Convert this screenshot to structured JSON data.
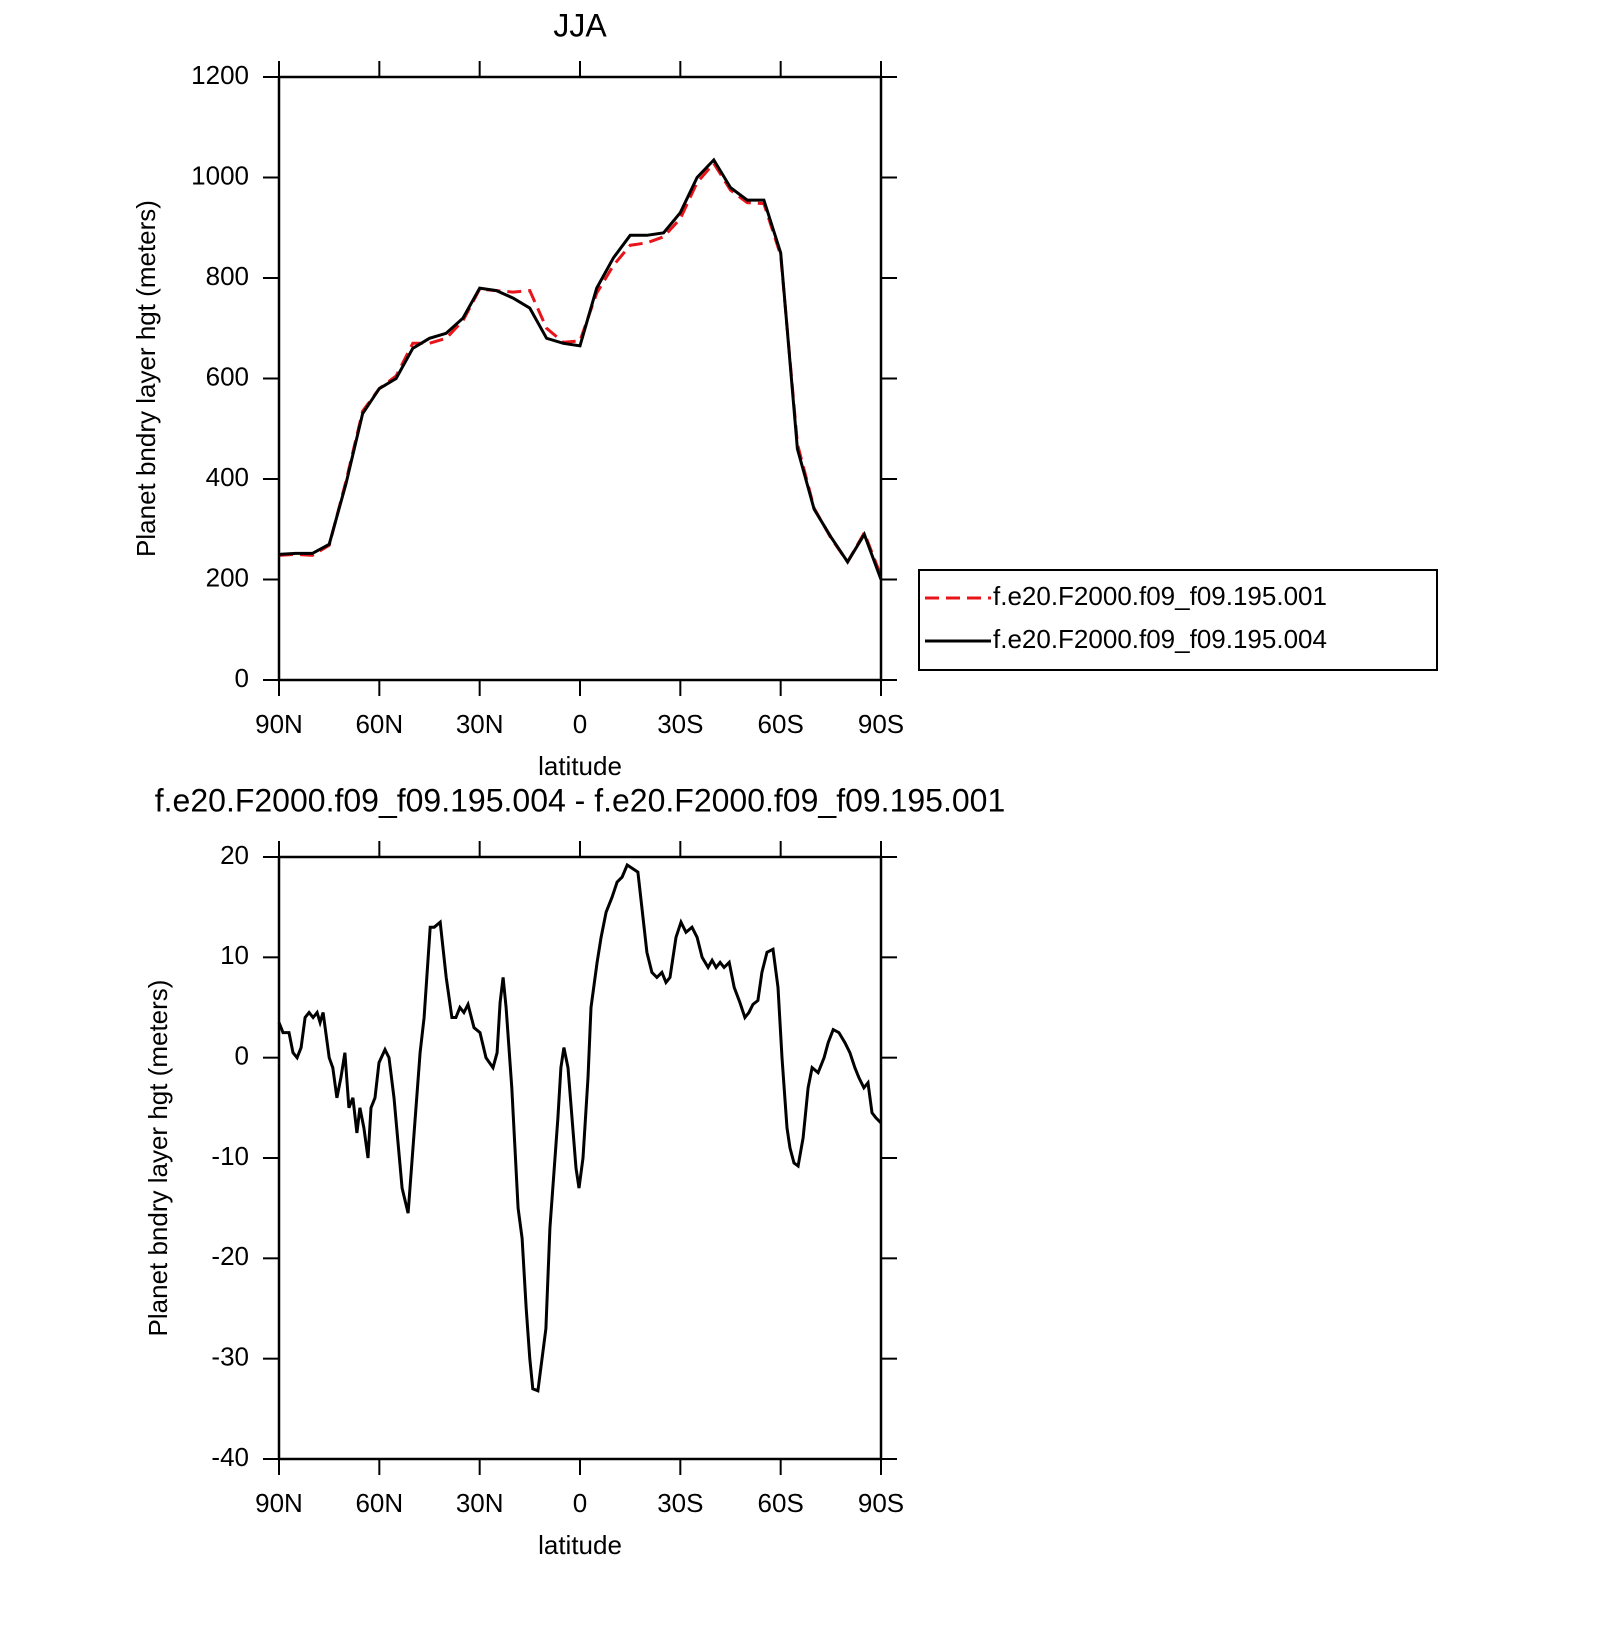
{
  "chart_data": [
    {
      "type": "line",
      "title": "JJA",
      "x_label": "latitude",
      "y_label": "Planet bndry layer hgt (meters)",
      "x": [
        90,
        85,
        80,
        75,
        70,
        65,
        60,
        55,
        50,
        45,
        40,
        35,
        30,
        25,
        20,
        15,
        10,
        5,
        0,
        -5,
        -10,
        -15,
        -20,
        -25,
        -30,
        -35,
        -40,
        -45,
        -50,
        -55,
        -60,
        -65,
        -70,
        -75,
        -80,
        -85,
        -90
      ],
      "series": [
        {
          "name": "f.e20.F2000.f09_f09.195.001",
          "color": "#e8141a",
          "style": "dashed",
          "values": [
            248,
            250,
            248,
            268,
            395,
            535,
            580,
            605,
            670,
            670,
            680,
            715,
            778,
            775,
            772,
            775,
            700,
            672,
            675,
            770,
            825,
            865,
            870,
            882,
            918,
            990,
            1028,
            975,
            950,
            948,
            845,
            470,
            342,
            283,
            235,
            293,
            207
          ]
        },
        {
          "name": "f.e20.F2000.f09_f09.195.004",
          "color": "#000000",
          "style": "solid",
          "values": [
            250,
            252,
            252,
            270,
            390,
            530,
            580,
            600,
            660,
            680,
            690,
            720,
            780,
            775,
            760,
            740,
            680,
            670,
            665,
            780,
            840,
            885,
            885,
            890,
            930,
            1000,
            1035,
            980,
            955,
            955,
            850,
            460,
            340,
            285,
            235,
            290,
            200
          ]
        }
      ],
      "xlim": [
        90,
        -90
      ],
      "xticks": [
        {
          "value": 90,
          "label": "90N"
        },
        {
          "value": 60,
          "label": "60N"
        },
        {
          "value": 30,
          "label": "30N"
        },
        0,
        {
          "value": -30,
          "label": "30S"
        },
        {
          "value": -60,
          "label": "60S"
        },
        {
          "value": -90,
          "label": "90S"
        }
      ],
      "ylim": [
        0,
        1200
      ],
      "yticks": [
        0,
        200,
        400,
        600,
        800,
        1000,
        1200
      ],
      "legend": "right"
    },
    {
      "type": "line",
      "title": "f.e20.F2000.f09_f09.195.004 - f.e20.F2000.f09_f09.195.001",
      "x_label": "latitude",
      "y_label": "Planet bndry layer hgt (meters)",
      "x": [
        90,
        88.8,
        87.0,
        85.8,
        84.6,
        83.4,
        82.2,
        81.0,
        79.8,
        78.6,
        77.7,
        76.8,
        75.0,
        73.9,
        72.7,
        71.5,
        70.3,
        69.1,
        67.9,
        66.7,
        65.8,
        64.6,
        63.4,
        62.5,
        61.3,
        60.1,
        58.3,
        57.1,
        55.6,
        53.2,
        51.4,
        49.6,
        47.8,
        46.6,
        44.8,
        43.6,
        41.8,
        40.0,
        38.3,
        37.1,
        35.9,
        34.7,
        33.5,
        31.7,
        29.9,
        28.1,
        26.0,
        24.8,
        23.9,
        23.0,
        22.1,
        20.4,
        18.5,
        17.3,
        16.1,
        15.0,
        14.1,
        12.6,
        10.2,
        9.0,
        6.6,
        5.7,
        4.8,
        3.6,
        2.4,
        1.2,
        0.3,
        -0.9,
        -2.4,
        -3.3,
        -5.1,
        -6.3,
        -7.8,
        -9.6,
        -11.1,
        -12.6,
        -14.1,
        -17.3,
        -20.0,
        -21.5,
        -23.0,
        -24.5,
        -25.7,
        -26.9,
        -28.7,
        -30.2,
        -31.7,
        -33.5,
        -35.0,
        -36.5,
        -38.3,
        -39.5,
        -40.7,
        -41.9,
        -43.1,
        -44.6,
        -46.1,
        -47.8,
        -49.3,
        -50.5,
        -51.7,
        -53.2,
        -54.4,
        -55.9,
        -57.7,
        -59.2,
        -60.4,
        -61.9,
        -62.8,
        -64.0,
        -65.2,
        -66.7,
        -68.2,
        -69.4,
        -71.2,
        -73.0,
        -74.2,
        -75.7,
        -77.4,
        -79.2,
        -80.7,
        -82.2,
        -83.4,
        -84.9,
        -86.1,
        -87.3,
        -88.5,
        -90
      ],
      "series": [
        {
          "color": "#000000",
          "style": "solid",
          "values": [
            3.5,
            2.5,
            2.5,
            0.5,
            0,
            1,
            4,
            4.5,
            4,
            4.5,
            3.5,
            4.5,
            0,
            -1,
            -4,
            -2,
            0.5,
            -5,
            -4,
            -7.5,
            -5,
            -7,
            -10,
            -5,
            -4,
            -0.5,
            0.8,
            0,
            -4,
            -13,
            -15.5,
            -7.5,
            0.5,
            4,
            13,
            13,
            13.5,
            8,
            4,
            4,
            5,
            4.5,
            5.3,
            3,
            2.5,
            0,
            -1,
            0.5,
            5.5,
            8,
            5,
            -3,
            -15,
            -18,
            -25,
            -30,
            -33,
            -33.2,
            -27,
            -17,
            -6,
            -1,
            1,
            -1,
            -6,
            -11,
            -13,
            -10,
            -2,
            5,
            9.5,
            12,
            14.5,
            16,
            17.5,
            18,
            19.2,
            18.5,
            10.5,
            8.5,
            8,
            8.5,
            7.5,
            8,
            12,
            13.5,
            12.5,
            13,
            12,
            10,
            9,
            9.7,
            9,
            9.5,
            9,
            9.5,
            7,
            5.5,
            4,
            4.5,
            5.3,
            5.7,
            8.5,
            10.5,
            10.8,
            7,
            0,
            -7,
            -9,
            -10.5,
            -10.8,
            -8,
            -3,
            -1,
            -1.5,
            0,
            1.5,
            2.8,
            2.5,
            1.5,
            0.5,
            -1,
            -2,
            -3,
            -2.5,
            -5.5,
            -6,
            -6.5
          ]
        }
      ],
      "xlim": [
        90,
        -90
      ],
      "xticks": [
        {
          "value": 90,
          "label": "90N"
        },
        {
          "value": 60,
          "label": "60N"
        },
        {
          "value": 30,
          "label": "30N"
        },
        0,
        {
          "value": -30,
          "label": "30S"
        },
        {
          "value": -60,
          "label": "60S"
        },
        {
          "value": -90,
          "label": "90S"
        }
      ],
      "ylim": [
        -40,
        20
      ],
      "yticks": [
        -40,
        -30,
        -20,
        -10,
        0,
        10,
        20
      ]
    }
  ]
}
